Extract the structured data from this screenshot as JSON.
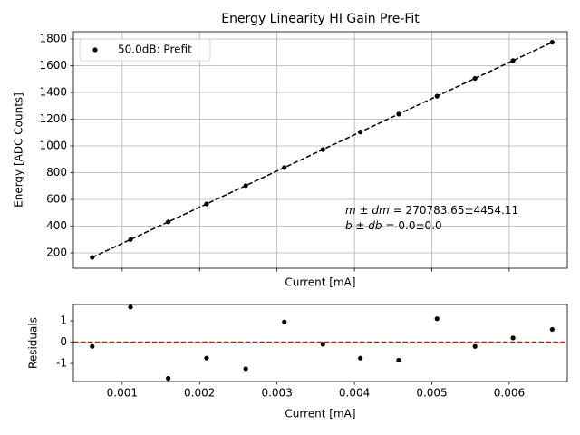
{
  "chart_data": [
    {
      "type": "scatter",
      "title": "Energy Linearity HI Gain Pre-Fit",
      "xlabel": "Current [mA]",
      "ylabel": "Energy [ADC Counts]",
      "x": [
        0.000613,
        0.001108,
        0.001595,
        0.00209,
        0.002596,
        0.003095,
        0.003593,
        0.004077,
        0.004572,
        0.005067,
        0.005558,
        0.006049,
        0.006555
      ],
      "series": [
        {
          "name": "50.0dB: Prefit",
          "color": "#000000",
          "values": [
            166,
            300,
            432,
            566,
            703,
            838,
            973,
            1104,
            1238,
            1372,
            1505,
            1638,
            1775
          ]
        }
      ],
      "fit_line": {
        "x": [
          0.000613,
          0.006555
        ],
        "values": [
          166,
          1775
        ],
        "color": "#000000"
      },
      "annotations": [
        {
          "label": "m ± dm",
          "text": "= 270783.65±4454.11"
        },
        {
          "label": "b ± db",
          "text": "= 0.0±0.0"
        }
      ],
      "xlim": [
        0.00037,
        0.00675
      ],
      "ylim": [
        85,
        1854
      ],
      "xticks": [
        0.001,
        0.002,
        0.003,
        0.004,
        0.005,
        0.006
      ],
      "xtick_labels": false,
      "yticks": [
        200,
        400,
        600,
        800,
        1000,
        1200,
        1400,
        1600,
        1800
      ],
      "grid": true,
      "legend": "upper left"
    },
    {
      "type": "scatter",
      "xlabel": "Current [mA]",
      "ylabel": "Residuals",
      "x": [
        0.000613,
        0.001108,
        0.001595,
        0.00209,
        0.002596,
        0.003095,
        0.003593,
        0.004077,
        0.004572,
        0.005067,
        0.005558,
        0.006049,
        0.006555
      ],
      "series": [
        {
          "color": "#000000",
          "values": [
            -0.2,
            1.65,
            -1.7,
            -0.75,
            -1.25,
            0.95,
            -0.1,
            -0.75,
            -0.85,
            1.1,
            -0.2,
            0.2,
            0.6
          ]
        }
      ],
      "hline": {
        "value": 0,
        "color": "#ff0000"
      },
      "xlim": [
        0.00037,
        0.00675
      ],
      "ylim": [
        -1.85,
        1.77
      ],
      "xticks": [
        0.001,
        0.002,
        0.003,
        0.004,
        0.005,
        0.006
      ],
      "xtick_labels": true,
      "yticks": [
        -1,
        0,
        1
      ],
      "grid": false
    }
  ]
}
